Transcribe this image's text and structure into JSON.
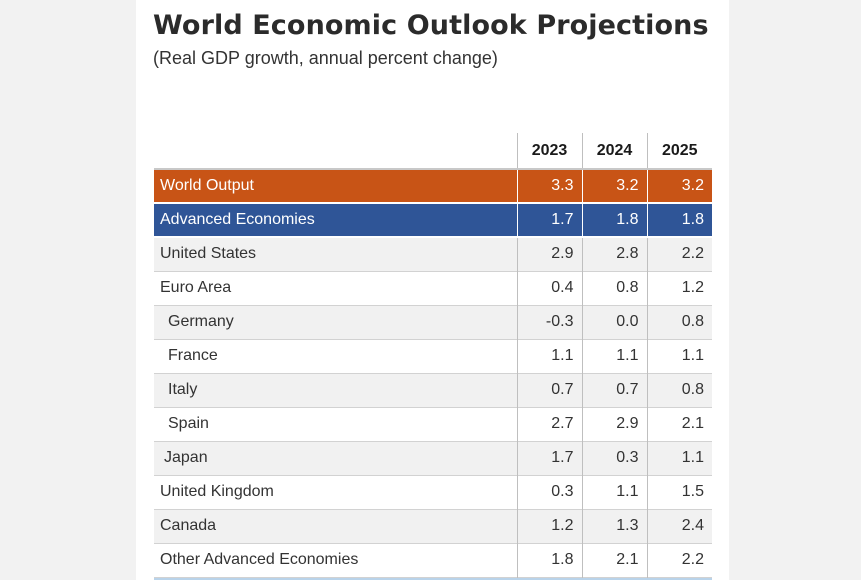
{
  "title": "World Economic Outlook Projections",
  "subtitle": "(Real GDP growth, annual percent change)",
  "colors": {
    "world_output_row": "#c85416",
    "advanced_economies_row": "#2f5597"
  },
  "table": {
    "years": [
      "2023",
      "2024",
      "2025"
    ],
    "rows": [
      {
        "name": "World Output",
        "values": [
          "3.3",
          "3.2",
          "3.2"
        ]
      },
      {
        "name": "Advanced Economies",
        "values": [
          "1.7",
          "1.8",
          "1.8"
        ]
      },
      {
        "name": "United States",
        "values": [
          "2.9",
          "2.8",
          "2.2"
        ]
      },
      {
        "name": "Euro Area",
        "values": [
          "0.4",
          "0.8",
          "1.2"
        ]
      },
      {
        "name": "Germany",
        "values": [
          "-0.3",
          "0.0",
          "0.8"
        ]
      },
      {
        "name": "France",
        "values": [
          "1.1",
          "1.1",
          "1.1"
        ]
      },
      {
        "name": "Italy",
        "values": [
          "0.7",
          "0.7",
          "0.8"
        ]
      },
      {
        "name": "Spain",
        "values": [
          "2.7",
          "2.9",
          "2.1"
        ]
      },
      {
        "name": "Japan",
        "values": [
          "1.7",
          "0.3",
          "1.1"
        ]
      },
      {
        "name": "United Kingdom",
        "values": [
          "0.3",
          "1.1",
          "1.5"
        ]
      },
      {
        "name": "Canada",
        "values": [
          "1.2",
          "1.3",
          "2.4"
        ]
      },
      {
        "name": "Other Advanced Economies",
        "values": [
          "1.8",
          "2.1",
          "2.2"
        ]
      }
    ]
  }
}
